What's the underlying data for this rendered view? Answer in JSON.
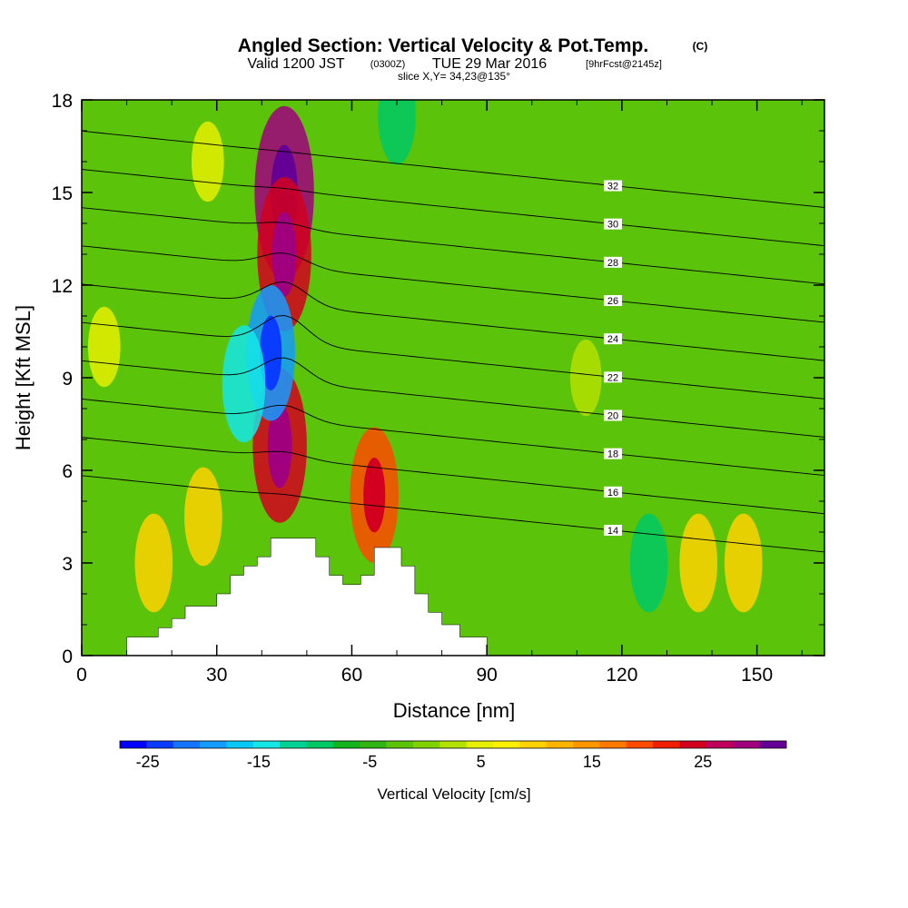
{
  "title": {
    "main": "Angled Section: Vertical Velocity & Pot.Temp.",
    "copyright": "(C)",
    "valid_prefix": "Valid 1200 JST",
    "zulu": "(0300Z)",
    "date": "TUE 29 Mar 2016",
    "forecast": "[9hrFcst@2145z]",
    "slice": "slice X,Y= 34,23@135°"
  },
  "chart_data": {
    "type": "heatmap",
    "xlabel": "Distance [nm]",
    "ylabel": "Height [Kft MSL]",
    "xlim": [
      0,
      165
    ],
    "ylim": [
      0,
      18
    ],
    "xticks": [
      0,
      30,
      60,
      90,
      120,
      150
    ],
    "yticks": [
      0,
      3,
      6,
      9,
      12,
      15,
      18
    ],
    "terrain": [
      [
        0,
        0
      ],
      [
        10,
        0
      ],
      [
        10,
        0.6
      ],
      [
        17,
        0.6
      ],
      [
        17,
        0.9
      ],
      [
        20,
        0.9
      ],
      [
        20,
        1.2
      ],
      [
        23,
        1.2
      ],
      [
        23,
        1.6
      ],
      [
        30,
        1.6
      ],
      [
        30,
        2
      ],
      [
        33,
        2
      ],
      [
        33,
        2.6
      ],
      [
        36,
        2.6
      ],
      [
        36,
        2.9
      ],
      [
        39,
        2.9
      ],
      [
        39,
        3.2
      ],
      [
        42,
        3.2
      ],
      [
        42,
        3.8
      ],
      [
        52,
        3.8
      ],
      [
        52,
        3.2
      ],
      [
        55,
        3.2
      ],
      [
        55,
        2.6
      ],
      [
        58,
        2.6
      ],
      [
        58,
        2.3
      ],
      [
        62,
        2.3
      ],
      [
        62,
        2.6
      ],
      [
        65,
        2.6
      ],
      [
        65,
        3.5
      ],
      [
        71,
        3.5
      ],
      [
        71,
        2.9
      ],
      [
        74,
        2.9
      ],
      [
        74,
        2
      ],
      [
        77,
        2
      ],
      [
        77,
        1.4
      ],
      [
        80,
        1.4
      ],
      [
        80,
        1
      ],
      [
        84,
        1
      ],
      [
        84,
        0.6
      ],
      [
        90,
        0.6
      ],
      [
        90,
        0
      ],
      [
        165,
        0
      ]
    ],
    "vertical_velocity_field": [
      {
        "x": 45,
        "y": 15,
        "value": 30
      },
      {
        "x": 45,
        "y": 13,
        "value": 25
      },
      {
        "x": 44,
        "y": 6.8,
        "value": 25
      },
      {
        "x": 65,
        "y": 5.2,
        "value": 20
      },
      {
        "x": 42,
        "y": 9.8,
        "value": -20
      },
      {
        "x": 36,
        "y": 8.8,
        "value": -15
      },
      {
        "x": 70,
        "y": 17.5,
        "value": -10
      },
      {
        "x": 126,
        "y": 3,
        "value": -10
      },
      {
        "x": 137,
        "y": 3,
        "value": 10
      },
      {
        "x": 147,
        "y": 3,
        "value": 10
      },
      {
        "x": 16,
        "y": 3,
        "value": 10
      },
      {
        "x": 27,
        "y": 4.5,
        "value": 10
      },
      {
        "x": 5,
        "y": 10,
        "value": 5
      },
      {
        "x": 28,
        "y": 16,
        "value": 5
      },
      {
        "x": 112,
        "y": 9,
        "value": 4
      }
    ],
    "theta_contours": [
      {
        "label": "14",
        "value": 14
      },
      {
        "label": "16",
        "value": 16
      },
      {
        "label": "18",
        "value": 18
      },
      {
        "label": "20",
        "value": 20
      },
      {
        "label": "22",
        "value": 22
      },
      {
        "label": "24",
        "value": 24
      },
      {
        "label": "26",
        "value": 26
      },
      {
        "label": "28",
        "value": 28
      },
      {
        "label": "30",
        "value": 30
      },
      {
        "label": "32",
        "value": 32
      }
    ],
    "colorbar": {
      "label": "Vertical Velocity [cm/s]",
      "tick_labels": [
        "-25",
        "-15",
        "-5",
        "5",
        "15",
        "25"
      ],
      "tick_values": [
        -25,
        -15,
        -5,
        5,
        15,
        25
      ],
      "min": -27.5,
      "max": 32.5,
      "step": 2.5,
      "colors": [
        "#0000ff",
        "#0a3cff",
        "#1473ff",
        "#149bff",
        "#0ac8f5",
        "#14e6e6",
        "#00d296",
        "#00c864",
        "#14b41e",
        "#32b414",
        "#5ac30a",
        "#82d200",
        "#b4e100",
        "#e6f000",
        "#fff000",
        "#ffd200",
        "#ffb400",
        "#ff9600",
        "#ff7800",
        "#ff4b00",
        "#f01e00",
        "#d2001e",
        "#be005a",
        "#a0007d",
        "#640096"
      ]
    }
  }
}
